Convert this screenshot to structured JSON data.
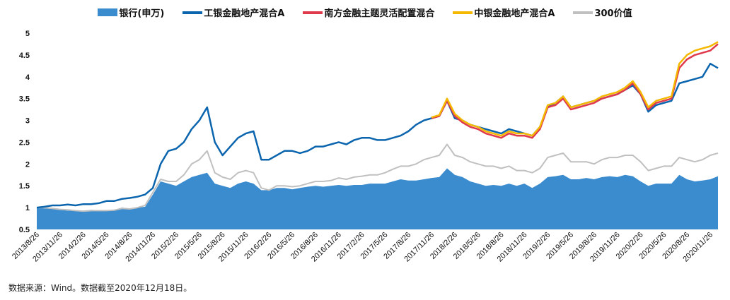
{
  "chart_data": {
    "type": "line",
    "title": "",
    "xlabel": "",
    "ylabel": "",
    "ylim": [
      0.5,
      5
    ],
    "yticks": [
      "0.5",
      "1",
      "1.5",
      "2",
      "2.5",
      "3",
      "3.5",
      "4",
      "4.5",
      "5"
    ],
    "x_start": "2013-08",
    "x_end": "2020-12",
    "xtick_labels": [
      "2013/8/26",
      "2013/11/26",
      "2014/2/26",
      "2014/5/26",
      "2014/8/26",
      "2014/11/26",
      "2015/2/26",
      "2015/5/26",
      "2015/8/26",
      "2015/11/26",
      "2016/2/26",
      "2016/5/26",
      "2016/8/26",
      "2016/11/26",
      "2017/2/26",
      "2017/5/26",
      "2017/8/26",
      "2017/11/26",
      "2018/2/26",
      "2018/5/26",
      "2018/8/26",
      "2018/11/26",
      "2019/2/26",
      "2019/5/26",
      "2019/8/26",
      "2019/11/26",
      "2020/2/26",
      "2020/5/26",
      "2020/8/26",
      "2020/11/26"
    ],
    "grid": false,
    "legend_placement": "top",
    "series": [
      {
        "name": "银行(申万)",
        "kind": "area",
        "color": "#3a8ccf",
        "values": [
          1.0,
          0.98,
          0.97,
          0.95,
          0.93,
          0.93,
          0.92,
          0.95,
          0.94,
          0.94,
          0.95,
          1.0,
          0.98,
          1.0,
          1.02,
          1.3,
          1.6,
          1.55,
          1.5,
          1.6,
          1.7,
          1.75,
          1.8,
          1.55,
          1.5,
          1.45,
          1.55,
          1.6,
          1.55,
          1.4,
          1.4,
          1.45,
          1.45,
          1.42,
          1.45,
          1.48,
          1.5,
          1.48,
          1.5,
          1.52,
          1.5,
          1.52,
          1.52,
          1.55,
          1.55,
          1.55,
          1.6,
          1.65,
          1.62,
          1.62,
          1.65,
          1.68,
          1.7,
          1.9,
          1.75,
          1.7,
          1.6,
          1.55,
          1.5,
          1.52,
          1.5,
          1.55,
          1.5,
          1.55,
          1.45,
          1.55,
          1.7,
          1.72,
          1.75,
          1.65,
          1.65,
          1.68,
          1.65,
          1.7,
          1.72,
          1.7,
          1.75,
          1.72,
          1.6,
          1.5,
          1.55,
          1.55,
          1.55,
          1.75,
          1.65,
          1.6,
          1.62,
          1.65,
          1.72
        ]
      },
      {
        "name": "300价值",
        "kind": "line",
        "color": "#c0c0c0",
        "values": [
          1.0,
          1.0,
          0.98,
          0.96,
          0.95,
          0.93,
          0.92,
          0.93,
          0.93,
          0.93,
          0.94,
          0.98,
          0.97,
          1.0,
          1.05,
          1.35,
          1.65,
          1.6,
          1.6,
          1.75,
          2.0,
          2.1,
          2.3,
          1.8,
          1.7,
          1.65,
          1.8,
          1.85,
          1.8,
          1.45,
          1.4,
          1.5,
          1.5,
          1.48,
          1.5,
          1.55,
          1.6,
          1.6,
          1.62,
          1.68,
          1.65,
          1.7,
          1.72,
          1.75,
          1.75,
          1.8,
          1.88,
          1.95,
          1.95,
          2.0,
          2.1,
          2.15,
          2.2,
          2.45,
          2.2,
          2.15,
          2.05,
          2.0,
          1.95,
          1.95,
          1.9,
          1.95,
          1.85,
          1.85,
          1.8,
          1.9,
          2.15,
          2.2,
          2.25,
          2.05,
          2.05,
          2.05,
          2.0,
          2.1,
          2.15,
          2.15,
          2.2,
          2.2,
          2.05,
          1.85,
          1.9,
          1.95,
          1.95,
          2.15,
          2.1,
          2.05,
          2.1,
          2.2,
          2.25
        ]
      },
      {
        "name": "工银金融地产混合A",
        "kind": "line",
        "color": "#0b65ae",
        "values": [
          1.0,
          1.02,
          1.05,
          1.05,
          1.07,
          1.05,
          1.08,
          1.08,
          1.1,
          1.15,
          1.15,
          1.2,
          1.22,
          1.25,
          1.3,
          1.45,
          2.0,
          2.3,
          2.35,
          2.5,
          2.8,
          3.0,
          3.3,
          2.5,
          2.2,
          2.4,
          2.6,
          2.7,
          2.75,
          2.1,
          2.1,
          2.2,
          2.3,
          2.3,
          2.25,
          2.3,
          2.4,
          2.4,
          2.45,
          2.5,
          2.45,
          2.55,
          2.6,
          2.6,
          2.55,
          2.55,
          2.6,
          2.65,
          2.75,
          2.9,
          3.0,
          3.05,
          3.1,
          3.45,
          3.05,
          3.0,
          2.9,
          2.85,
          2.8,
          2.75,
          2.7,
          2.8,
          2.75,
          2.7,
          2.65,
          2.85,
          3.3,
          3.4,
          3.55,
          3.3,
          3.35,
          3.4,
          3.45,
          3.5,
          3.55,
          3.6,
          3.7,
          3.8,
          3.6,
          3.2,
          3.35,
          3.4,
          3.45,
          3.85,
          3.9,
          3.95,
          4.0,
          4.3,
          4.2
        ]
      },
      {
        "name": "南方金融主题灵活配置混合",
        "kind": "line",
        "color": "#e0394b",
        "start": "2017-11",
        "values": [
          3.05,
          3.1,
          3.45,
          3.1,
          2.95,
          2.85,
          2.8,
          2.7,
          2.65,
          2.6,
          2.7,
          2.65,
          2.65,
          2.6,
          2.8,
          3.3,
          3.35,
          3.5,
          3.25,
          3.3,
          3.35,
          3.4,
          3.5,
          3.55,
          3.6,
          3.7,
          3.85,
          3.6,
          3.25,
          3.4,
          3.45,
          3.5,
          4.2,
          4.4,
          4.5,
          4.55,
          4.6,
          4.75
        ]
      },
      {
        "name": "中银金融地产混合A",
        "kind": "line",
        "color": "#f5b800",
        "start": "2017-11",
        "values": [
          3.07,
          3.12,
          3.5,
          3.15,
          3.0,
          2.9,
          2.85,
          2.75,
          2.7,
          2.65,
          2.75,
          2.7,
          2.7,
          2.65,
          2.85,
          3.35,
          3.4,
          3.55,
          3.3,
          3.35,
          3.4,
          3.45,
          3.55,
          3.6,
          3.65,
          3.75,
          3.9,
          3.65,
          3.3,
          3.45,
          3.5,
          3.55,
          4.3,
          4.5,
          4.6,
          4.65,
          4.7,
          4.8
        ]
      }
    ]
  },
  "legend_order": [
    0,
    2,
    3,
    4,
    1
  ],
  "footer": "数据来源：Wind。数据截至2020年12月18日。"
}
